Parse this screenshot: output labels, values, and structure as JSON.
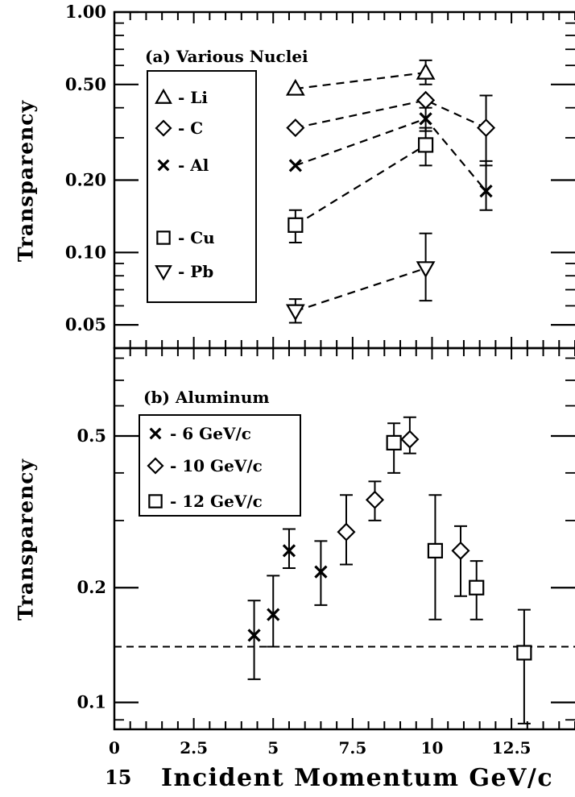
{
  "page_number": "15",
  "chart_data": [
    {
      "type": "scatter",
      "panel": "(a)",
      "title": "(a) Various Nuclei",
      "ylabel": "Transparency",
      "yscale": "log",
      "ylim": [
        0.04,
        1.0
      ],
      "xlim": [
        0,
        14.5
      ],
      "ytick_labels": [
        "1.00",
        "0.50",
        "0.20",
        "0.10",
        "0.05"
      ],
      "ytick_values": [
        1.0,
        0.5,
        0.2,
        0.1,
        0.05
      ],
      "legend_box": true,
      "series": [
        {
          "name": "Li",
          "legend_label": "- Li",
          "marker": "triangle-up",
          "line": "dashed",
          "x": [
            5.7,
            9.8
          ],
          "y": [
            0.48,
            0.56
          ],
          "err_low": [
            null,
            0.5
          ],
          "err_high": [
            null,
            0.63
          ]
        },
        {
          "name": "C",
          "legend_label": "- C",
          "marker": "diamond",
          "line": "dashed",
          "x": [
            5.7,
            9.8,
            11.7
          ],
          "y": [
            0.33,
            0.43,
            0.33
          ],
          "err_low": [
            null,
            null,
            0.23
          ],
          "err_high": [
            null,
            null,
            0.45
          ]
        },
        {
          "name": "Al",
          "legend_label": "- Al",
          "marker": "x",
          "line": "dashed",
          "x": [
            5.7,
            9.8,
            11.7
          ],
          "y": [
            0.23,
            0.36,
            0.18
          ],
          "err_low": [
            null,
            0.32,
            0.15
          ],
          "err_high": [
            null,
            0.4,
            0.24
          ]
        },
        {
          "name": "Cu",
          "legend_label": "- Cu",
          "marker": "square",
          "line": "dashed",
          "x": [
            5.7,
            9.8
          ],
          "y": [
            0.13,
            0.28
          ],
          "err_low": [
            0.11,
            0.23
          ],
          "err_high": [
            0.15,
            0.33
          ]
        },
        {
          "name": "Pb",
          "legend_label": "- Pb",
          "marker": "triangle-down",
          "line": "dashed",
          "x": [
            5.7,
            9.8
          ],
          "y": [
            0.057,
            0.086
          ],
          "err_low": [
            0.051,
            0.063
          ],
          "err_high": [
            0.064,
            0.12
          ]
        }
      ]
    },
    {
      "type": "scatter",
      "panel": "(b)",
      "title": "(b) Aluminum",
      "ylabel": "Transparency",
      "xlabel": "Incident Momentum GeV/c",
      "yscale": "log",
      "ylim": [
        0.085,
        0.85
      ],
      "xlim": [
        0,
        14.5
      ],
      "xtick_labels": [
        "0",
        "2.5",
        "5",
        "7.5",
        "10",
        "12.5"
      ],
      "xtick_values": [
        0,
        2.5,
        5,
        7.5,
        10,
        12.5
      ],
      "ytick_labels": [
        "0.5",
        "0.2",
        "0.1"
      ],
      "ytick_values": [
        0.5,
        0.2,
        0.1
      ],
      "legend_box": true,
      "reference_line": {
        "style": "dashed",
        "y": 0.14
      },
      "series": [
        {
          "name": "6 GeV/c",
          "legend_label": "- 6 GeV/c",
          "marker": "x",
          "x": [
            4.4,
            5.0,
            5.5,
            6.5
          ],
          "y": [
            0.15,
            0.17,
            0.25,
            0.22
          ],
          "err_low": [
            0.115,
            0.14,
            0.225,
            0.18
          ],
          "err_high": [
            0.185,
            0.215,
            0.285,
            0.265
          ]
        },
        {
          "name": "10 GeV/c",
          "legend_label": "- 10 GeV/c",
          "marker": "diamond",
          "x": [
            7.3,
            8.2,
            9.3,
            10.9
          ],
          "y": [
            0.28,
            0.34,
            0.49,
            0.25
          ],
          "err_low": [
            0.23,
            0.3,
            0.45,
            0.19
          ],
          "err_high": [
            0.35,
            0.38,
            0.56,
            0.29
          ]
        },
        {
          "name": "12 GeV/c",
          "legend_label": "- 12 GeV/c",
          "marker": "square",
          "x": [
            8.8,
            10.1,
            11.4,
            12.9
          ],
          "y": [
            0.48,
            0.25,
            0.2,
            0.135
          ],
          "err_low": [
            0.4,
            0.165,
            0.165,
            0.088
          ],
          "err_high": [
            0.54,
            0.35,
            0.235,
            0.175
          ]
        }
      ]
    }
  ]
}
